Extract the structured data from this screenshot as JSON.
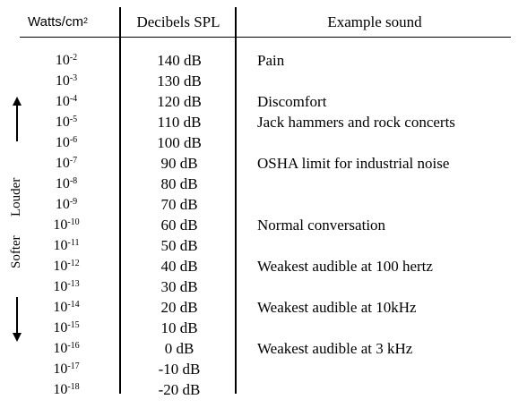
{
  "headers": {
    "watts_base": "Watts/cm",
    "watts_exp": "2",
    "decibels": "Decibels SPL",
    "example": "Example sound"
  },
  "side_labels": {
    "louder": "Louder",
    "softer": "Softer"
  },
  "rows": [
    {
      "base": "10",
      "exp": "-2",
      "db": "140 dB",
      "example": "Pain"
    },
    {
      "base": "10",
      "exp": "-3",
      "db": "130 dB",
      "example": ""
    },
    {
      "base": "10",
      "exp": "-4",
      "db": "120 dB",
      "example": "Discomfort"
    },
    {
      "base": "10",
      "exp": "-5",
      "db": "110 dB",
      "example": "Jack hammers and rock concerts"
    },
    {
      "base": "10",
      "exp": "-6",
      "db": "100 dB",
      "example": ""
    },
    {
      "base": "10",
      "exp": "-7",
      "db": "90 dB",
      "example": "OSHA limit for industrial noise"
    },
    {
      "base": "10",
      "exp": "-8",
      "db": "80 dB",
      "example": ""
    },
    {
      "base": "10",
      "exp": "-9",
      "db": "70 dB",
      "example": ""
    },
    {
      "base": "10",
      "exp": "-10",
      "db": "60 dB",
      "example": "Normal conversation"
    },
    {
      "base": "10",
      "exp": "-11",
      "db": "50 dB",
      "example": ""
    },
    {
      "base": "10",
      "exp": "-12",
      "db": "40 dB",
      "example": "Weakest audible at 100 hertz"
    },
    {
      "base": "10",
      "exp": "-13",
      "db": "30 dB",
      "example": ""
    },
    {
      "base": "10",
      "exp": "-14",
      "db": "20 dB",
      "example": "Weakest audible at 10kHz"
    },
    {
      "base": "10",
      "exp": "-15",
      "db": "10 dB",
      "example": ""
    },
    {
      "base": "10",
      "exp": "-16",
      "db": "0 dB",
      "example": "Weakest audible at 3 kHz"
    },
    {
      "base": "10",
      "exp": "-17",
      "db": "-10 dB",
      "example": ""
    },
    {
      "base": "10",
      "exp": "-18",
      "db": "-20 dB",
      "example": ""
    }
  ]
}
